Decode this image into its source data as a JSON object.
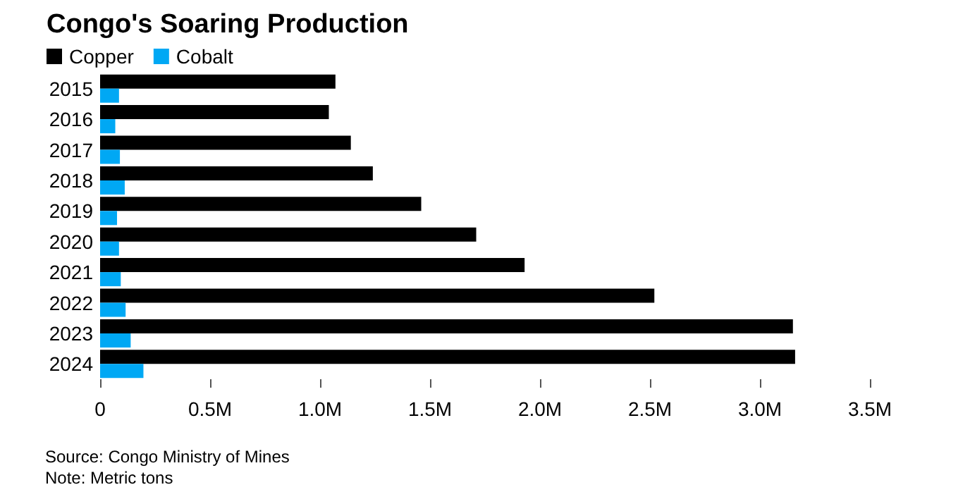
{
  "chart_data": {
    "type": "bar",
    "orientation": "horizontal",
    "title": "Congo's Soaring Production",
    "categories": [
      "2015",
      "2016",
      "2017",
      "2018",
      "2019",
      "2020",
      "2021",
      "2022",
      "2023",
      "2024"
    ],
    "series": [
      {
        "name": "Copper",
        "color": "#000000",
        "values": [
          1070000,
          1040000,
          1140000,
          1240000,
          1460000,
          1710000,
          1930000,
          2520000,
          3150000,
          3160000
        ]
      },
      {
        "name": "Cobalt",
        "color": "#00a8f4",
        "values": [
          86000,
          69000,
          90000,
          112000,
          77000,
          86000,
          94000,
          116000,
          139000,
          197000
        ]
      }
    ],
    "xlim": [
      0,
      3500000
    ],
    "xticks": [
      0,
      {
        "value": 500000,
        "label": "0.5M"
      },
      {
        "value": 1000000,
        "label": "1.0M"
      },
      {
        "value": 1500000,
        "label": "1.5M"
      },
      {
        "value": 2000000,
        "label": "2.0M"
      },
      {
        "value": 2500000,
        "label": "2.5M"
      },
      {
        "value": 3000000,
        "label": "3.0M"
      },
      {
        "value": 3500000,
        "label": "3.5M"
      }
    ],
    "grid": false,
    "legend": "top left",
    "annotations": [
      "Source: Congo Ministry of Mines",
      "Note: Metric tons"
    ]
  }
}
